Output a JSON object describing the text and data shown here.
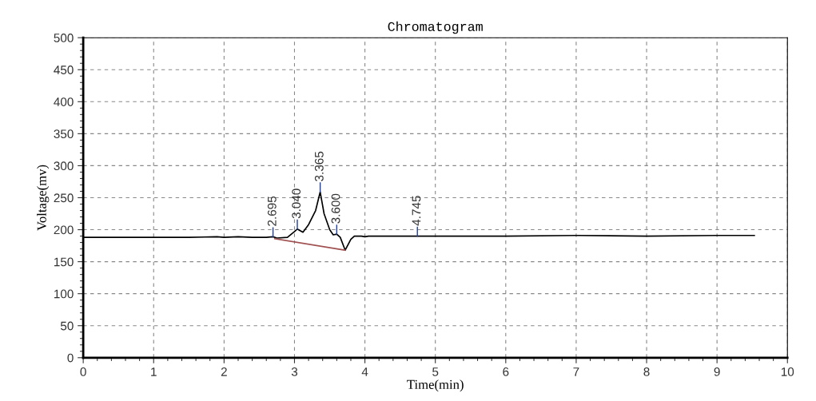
{
  "chart_data": {
    "type": "line",
    "title": "Chromatogram",
    "xlabel": "Time(min)",
    "ylabel": "Voltage(mv)",
    "xlim": [
      0,
      10
    ],
    "ylim": [
      0,
      500
    ],
    "xticks": [
      0,
      1,
      2,
      3,
      4,
      5,
      6,
      7,
      8,
      9,
      10
    ],
    "yticks": [
      0,
      50,
      100,
      150,
      200,
      250,
      300,
      350,
      400,
      450,
      500
    ],
    "grid": true,
    "marker": "none",
    "line_style": "solid",
    "series": [
      {
        "color": "#000000",
        "x": [
          0,
          0.5,
          1,
          1.5,
          1.9,
          2.0,
          2.2,
          2.4,
          2.6,
          2.695,
          2.75,
          2.9,
          3.0,
          3.04,
          3.12,
          3.2,
          3.3,
          3.365,
          3.42,
          3.5,
          3.55,
          3.6,
          3.65,
          3.72,
          3.8,
          3.85,
          3.95,
          4.0,
          4.05,
          4.5,
          5.0,
          6.0,
          7.0,
          8.0,
          9.0,
          9.53
        ],
        "values": [
          188,
          188,
          188,
          188,
          189,
          188,
          189,
          188,
          188,
          189,
          187,
          188,
          197,
          201,
          196,
          208,
          230,
          259,
          225,
          200,
          192,
          193,
          188,
          168,
          185,
          190,
          190,
          189,
          190,
          190,
          190,
          190,
          191,
          190,
          191,
          191
        ]
      },
      {
        "color": "#a05050",
        "x": [
          2.72,
          3.72
        ],
        "values": [
          186,
          168
        ]
      }
    ],
    "annotations": [
      {
        "text": "2.695",
        "x": 2.695,
        "y": 189
      },
      {
        "text": "3.040",
        "x": 3.04,
        "y": 201
      },
      {
        "text": "3.365",
        "x": 3.365,
        "y": 259
      },
      {
        "text": "3.600",
        "x": 3.6,
        "y": 193
      },
      {
        "text": "4.745",
        "x": 4.745,
        "y": 190
      }
    ]
  }
}
